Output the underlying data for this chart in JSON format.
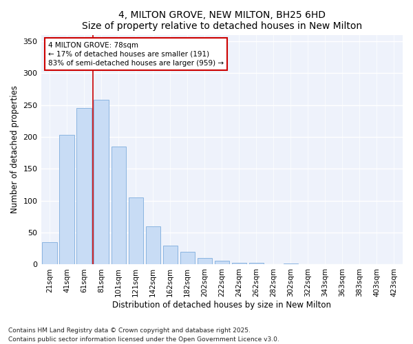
{
  "title": "4, MILTON GROVE, NEW MILTON, BH25 6HD",
  "subtitle": "Size of property relative to detached houses in New Milton",
  "xlabel": "Distribution of detached houses by size in New Milton",
  "ylabel": "Number of detached properties",
  "categories": [
    "21sqm",
    "41sqm",
    "61sqm",
    "81sqm",
    "101sqm",
    "121sqm",
    "142sqm",
    "162sqm",
    "182sqm",
    "202sqm",
    "222sqm",
    "242sqm",
    "262sqm",
    "282sqm",
    "302sqm",
    "322sqm",
    "343sqm",
    "363sqm",
    "383sqm",
    "403sqm",
    "423sqm"
  ],
  "bar_heights": [
    35,
    203,
    245,
    258,
    185,
    105,
    60,
    30,
    20,
    10,
    6,
    3,
    3,
    1,
    2,
    0,
    0,
    0,
    0,
    0,
    0
  ],
  "bar_color": "#c8dcf5",
  "bar_edge_color": "#8ab4e0",
  "vline_color": "#cc0000",
  "annotation_text": "4 MILTON GROVE: 78sqm\n← 17% of detached houses are smaller (191)\n83% of semi-detached houses are larger (959) →",
  "annotation_box_color": "white",
  "annotation_box_edge_color": "#cc0000",
  "ylim": [
    0,
    360
  ],
  "yticks": [
    0,
    50,
    100,
    150,
    200,
    250,
    300,
    350
  ],
  "bg_color": "#eef2fb",
  "plot_bg_color": "#eef2fb",
  "footnote": "Contains HM Land Registry data © Crown copyright and database right 2025.\nContains public sector information licensed under the Open Government Licence v3.0.",
  "title_fontsize": 10,
  "subtitle_fontsize": 9,
  "tick_fontsize": 7.5,
  "ylabel_fontsize": 8.5,
  "xlabel_fontsize": 8.5,
  "footnote_fontsize": 6.5,
  "vline_index": 3
}
